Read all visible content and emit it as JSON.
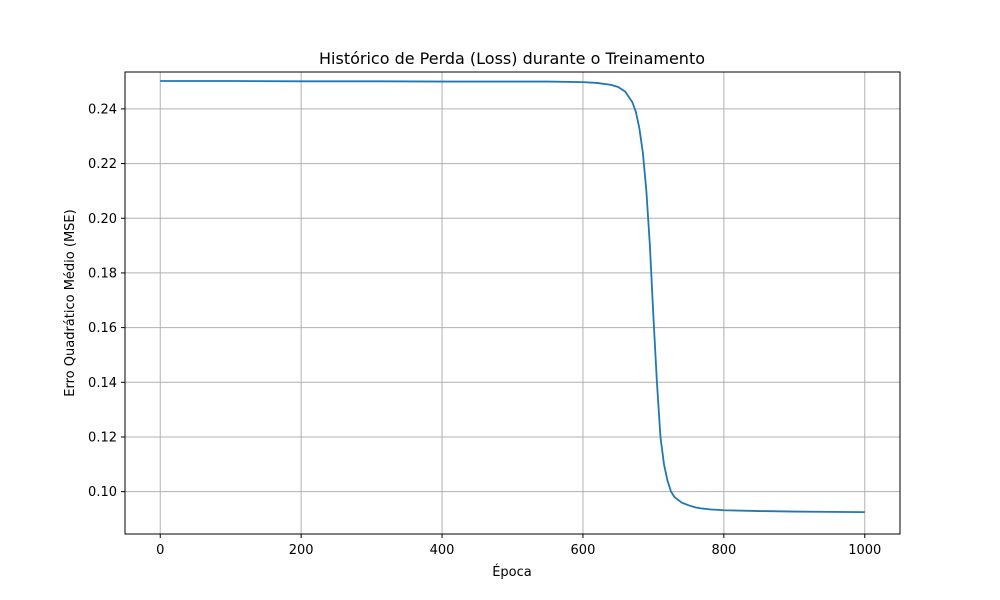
{
  "chart_data": {
    "type": "line",
    "title": "Histórico de Perda (Loss) durante o Treinamento",
    "xlabel": "Época",
    "ylabel": "Erro Quadrático Médio (MSE)",
    "xlim": [
      -50,
      1050
    ],
    "ylim": [
      0.0845,
      0.2535
    ],
    "xticks": [
      0,
      200,
      400,
      600,
      800,
      1000
    ],
    "xtick_labels": [
      "0",
      "200",
      "400",
      "600",
      "800",
      "1000"
    ],
    "yticks": [
      0.1,
      0.12,
      0.14,
      0.16,
      0.18,
      0.2,
      0.22,
      0.24
    ],
    "ytick_labels": [
      "0.10",
      "0.12",
      "0.14",
      "0.16",
      "0.18",
      "0.20",
      "0.22",
      "0.24"
    ],
    "grid": true,
    "color": "#1f77b4",
    "series": [
      {
        "x": [
          0,
          100,
          200,
          300,
          400,
          500,
          550,
          600,
          620,
          640,
          650,
          660,
          670,
          675,
          680,
          685,
          690,
          695,
          700,
          705,
          710,
          715,
          720,
          725,
          730,
          740,
          750,
          760,
          770,
          780,
          800,
          850,
          900,
          950,
          1000
        ],
        "values": [
          0.2502,
          0.2502,
          0.2501,
          0.2501,
          0.25,
          0.25,
          0.25,
          0.2498,
          0.2495,
          0.2488,
          0.248,
          0.2463,
          0.2425,
          0.239,
          0.233,
          0.224,
          0.21,
          0.19,
          0.164,
          0.14,
          0.12,
          0.11,
          0.104,
          0.1,
          0.098,
          0.096,
          0.095,
          0.0942,
          0.0938,
          0.0935,
          0.0932,
          0.0929,
          0.0927,
          0.0926,
          0.0925
        ]
      }
    ]
  }
}
